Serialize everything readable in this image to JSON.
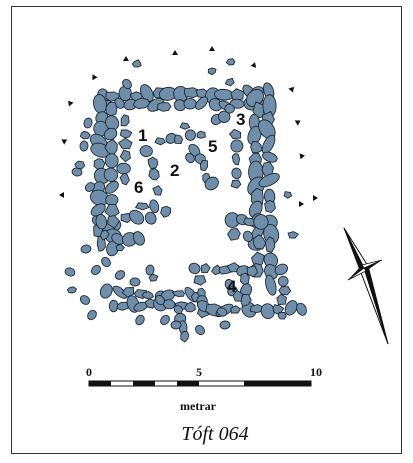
{
  "rooms": [
    {
      "id": "1",
      "label": "1"
    },
    {
      "id": "2",
      "label": "2"
    },
    {
      "id": "3",
      "label": "3"
    },
    {
      "id": "4",
      "label": "4"
    },
    {
      "id": "5",
      "label": "5"
    },
    {
      "id": "6",
      "label": "6"
    }
  ],
  "scale": {
    "ticks": [
      "0",
      "5",
      "10"
    ],
    "unit": "metrar"
  },
  "caption": "Tóft 064",
  "colors": {
    "stone_fill": "#6f8ea9",
    "stone_stroke": "#1f2a36",
    "ink": "#111111"
  },
  "north_arrow": {
    "icon": "compass-star-icon"
  }
}
